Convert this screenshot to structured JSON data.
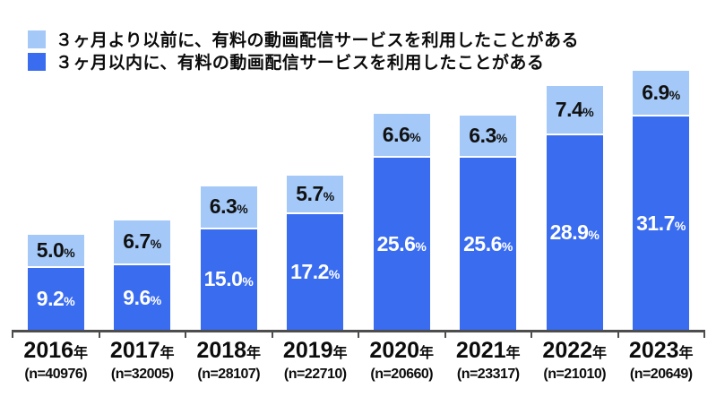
{
  "page": {
    "background": "#ffffff"
  },
  "legend": {
    "items": [
      {
        "id": "past",
        "label": "３ヶ月より以前に、有料の動画配信サービスを利用したことがある",
        "color": "#a4c9f8"
      },
      {
        "id": "recent",
        "label": "３ヶ月以内に、有料の動画配信サービスを利用したことがある",
        "color": "#3a6cf0"
      }
    ]
  },
  "chart_data": {
    "type": "bar",
    "stacked": true,
    "orientation": "vertical",
    "title": "",
    "xlabel": "",
    "ylabel": "",
    "categories": [
      "2016年",
      "2017年",
      "2018年",
      "2019年",
      "2020年",
      "2021年",
      "2022年",
      "2023年"
    ],
    "sample_sizes": [
      "(n=40976)",
      "(n=32005)",
      "(n=28107)",
      "(n=22710)",
      "(n=20660)",
      "(n=23317)",
      "(n=21010)",
      "(n=20649)"
    ],
    "series": [
      {
        "name": "３ヶ月以内に、有料の動画配信サービスを利用したことがある",
        "stack_position": "bottom",
        "color": "#3a6cf0",
        "label_color": "#ffffff",
        "values": [
          9.2,
          9.6,
          15.0,
          17.2,
          25.6,
          25.6,
          28.9,
          31.7
        ]
      },
      {
        "name": "３ヶ月より以前に、有料の動画配信サービスを利用したことがある",
        "stack_position": "top",
        "color": "#a4c9f8",
        "label_color": "#111111",
        "values": [
          5.0,
          6.7,
          6.3,
          5.7,
          6.6,
          6.3,
          7.4,
          6.9
        ]
      }
    ],
    "value_suffix": "%",
    "value_decimals": 1,
    "ylim": [
      0,
      40
    ],
    "grid": false,
    "y_axis_visible": false,
    "legend_position": "top-left",
    "axis_color": "#4d4d4d"
  }
}
